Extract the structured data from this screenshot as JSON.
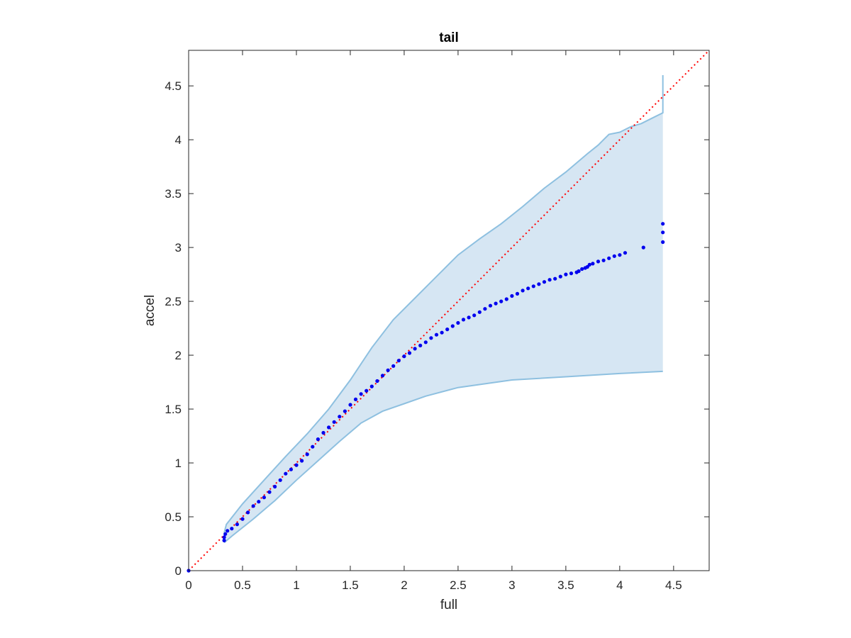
{
  "chart_data": {
    "type": "scatter",
    "title": "tail",
    "xlabel": "full",
    "ylabel": "accel",
    "xlim": [
      0,
      4.83
    ],
    "ylim": [
      0,
      4.83
    ],
    "xticks": [
      0,
      0.5,
      1,
      1.5,
      2,
      2.5,
      3,
      3.5,
      4,
      4.5
    ],
    "yticks": [
      0,
      0.5,
      1,
      1.5,
      2,
      2.5,
      3,
      3.5,
      4,
      4.5
    ],
    "xtick_labels": [
      "0",
      "0.5",
      "1",
      "1.5",
      "2",
      "2.5",
      "3",
      "3.5",
      "4",
      "4.5"
    ],
    "ytick_labels": [
      "0",
      "0.5",
      "1",
      "1.5",
      "2",
      "2.5",
      "3",
      "3.5",
      "4",
      "4.5"
    ],
    "grid": false,
    "colors": {
      "points": "#0000ee",
      "band_fill": "#d6e6f3",
      "band_edge": "#8ec0e0",
      "reference_line": "#ff0000"
    },
    "reference_line": {
      "style": "dotted",
      "from": [
        0,
        0
      ],
      "to": [
        4.83,
        4.83
      ]
    },
    "confidence_band": {
      "upper": [
        [
          0.33,
          0.35
        ],
        [
          0.35,
          0.43
        ],
        [
          0.5,
          0.62
        ],
        [
          0.7,
          0.84
        ],
        [
          0.9,
          1.06
        ],
        [
          1.1,
          1.27
        ],
        [
          1.3,
          1.5
        ],
        [
          1.5,
          1.77
        ],
        [
          1.7,
          2.07
        ],
        [
          1.9,
          2.33
        ],
        [
          2.1,
          2.53
        ],
        [
          2.3,
          2.73
        ],
        [
          2.5,
          2.93
        ],
        [
          2.7,
          3.08
        ],
        [
          2.9,
          3.22
        ],
        [
          3.1,
          3.38
        ],
        [
          3.3,
          3.55
        ],
        [
          3.5,
          3.7
        ],
        [
          3.7,
          3.87
        ],
        [
          3.8,
          3.95
        ],
        [
          3.85,
          4.0
        ],
        [
          3.9,
          4.05
        ],
        [
          4.0,
          4.07
        ],
        [
          4.1,
          4.12
        ],
        [
          4.2,
          4.15
        ],
        [
          4.3,
          4.2
        ],
        [
          4.4,
          4.25
        ],
        [
          4.4,
          4.6
        ]
      ],
      "lower": [
        [
          4.4,
          1.85
        ],
        [
          4.0,
          1.83
        ],
        [
          3.5,
          1.8
        ],
        [
          3.0,
          1.77
        ],
        [
          2.5,
          1.7
        ],
        [
          2.2,
          1.62
        ],
        [
          2.0,
          1.55
        ],
        [
          1.8,
          1.48
        ],
        [
          1.6,
          1.37
        ],
        [
          1.4,
          1.2
        ],
        [
          1.2,
          1.02
        ],
        [
          1.0,
          0.84
        ],
        [
          0.8,
          0.65
        ],
        [
          0.6,
          0.48
        ],
        [
          0.4,
          0.32
        ],
        [
          0.33,
          0.26
        ]
      ]
    },
    "series": [
      {
        "x": [
          0,
          0.33,
          0.33,
          0.34,
          0.36,
          0.4,
          0.45,
          0.5,
          0.55,
          0.6,
          0.65,
          0.7,
          0.75,
          0.8,
          0.85,
          0.9,
          0.95,
          1.0,
          1.05,
          1.1,
          1.15,
          1.2,
          1.25,
          1.3,
          1.35,
          1.4,
          1.45,
          1.5,
          1.55,
          1.6,
          1.65,
          1.7,
          1.75,
          1.8,
          1.85,
          1.9,
          1.95,
          2.0,
          2.05,
          2.1,
          2.15,
          2.2,
          2.25,
          2.3,
          2.35,
          2.4,
          2.45,
          2.5,
          2.55,
          2.6,
          2.65,
          2.7,
          2.75,
          2.8,
          2.85,
          2.9,
          2.95,
          3.0,
          3.05,
          3.1,
          3.15,
          3.2,
          3.25,
          3.3,
          3.35,
          3.4,
          3.45,
          3.5,
          3.55,
          3.6,
          3.62,
          3.65,
          3.68,
          3.7,
          3.72,
          3.75,
          3.8,
          3.85,
          3.9,
          3.95,
          4.0,
          4.05,
          4.22,
          4.4,
          4.4,
          4.4
        ],
        "y": [
          0,
          0.28,
          0.31,
          0.34,
          0.37,
          0.39,
          0.43,
          0.48,
          0.54,
          0.6,
          0.64,
          0.68,
          0.73,
          0.78,
          0.84,
          0.9,
          0.94,
          0.98,
          1.02,
          1.08,
          1.15,
          1.22,
          1.28,
          1.33,
          1.38,
          1.43,
          1.48,
          1.54,
          1.59,
          1.64,
          1.67,
          1.71,
          1.76,
          1.81,
          1.86,
          1.9,
          1.95,
          1.99,
          2.02,
          2.06,
          2.09,
          2.12,
          2.16,
          2.19,
          2.21,
          2.24,
          2.27,
          2.3,
          2.33,
          2.35,
          2.37,
          2.4,
          2.43,
          2.46,
          2.48,
          2.5,
          2.52,
          2.55,
          2.57,
          2.6,
          2.62,
          2.64,
          2.66,
          2.68,
          2.7,
          2.71,
          2.73,
          2.75,
          2.76,
          2.77,
          2.78,
          2.8,
          2.81,
          2.82,
          2.84,
          2.85,
          2.87,
          2.88,
          2.9,
          2.92,
          2.93,
          2.95,
          3.0,
          3.05,
          3.14,
          3.22
        ]
      }
    ]
  }
}
